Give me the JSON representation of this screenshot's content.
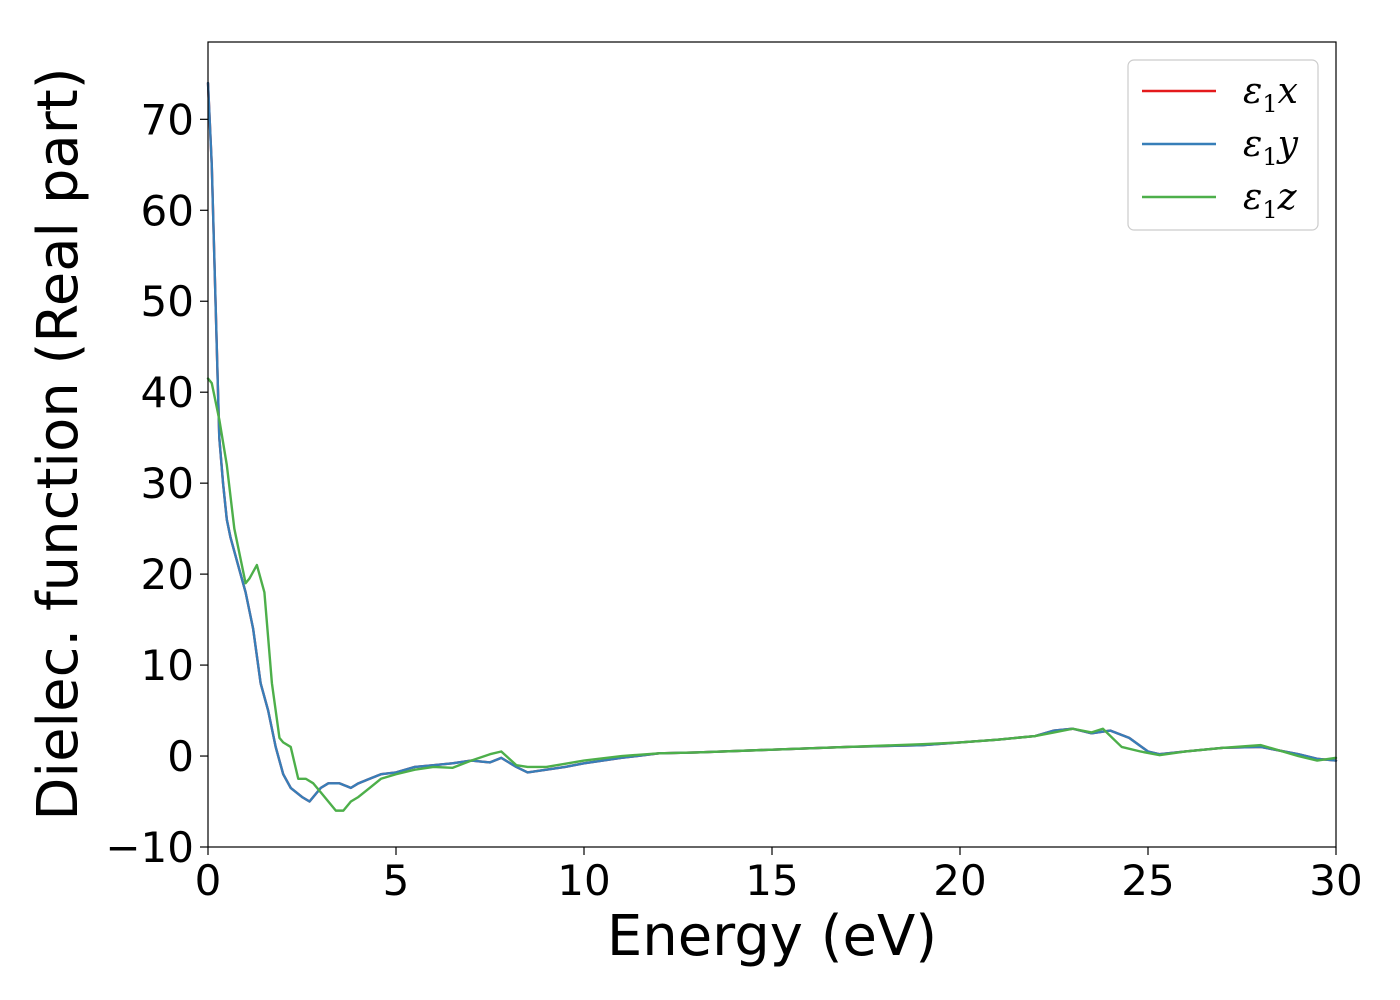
{
  "chart_data": {
    "type": "line",
    "xlabel": "Energy (eV)",
    "ylabel": "Dielec. function (Real part)",
    "xlim": [
      0,
      30
    ],
    "ylim": [
      -10,
      78.5
    ],
    "xticks": [
      0,
      5,
      10,
      15,
      20,
      25,
      30
    ],
    "yticks": [
      -10,
      0,
      10,
      20,
      30,
      40,
      50,
      60,
      70
    ],
    "xtick_labels": [
      "0",
      "5",
      "10",
      "15",
      "20",
      "25",
      "30"
    ],
    "ytick_labels": [
      "−10",
      "0",
      "10",
      "20",
      "30",
      "40",
      "50",
      "60",
      "70"
    ],
    "grid": false,
    "legend_position": "top-right",
    "legend": [
      {
        "sym": "ε",
        "sub": "1",
        "var": "x",
        "color": "#e41a1c"
      },
      {
        "sym": "ε",
        "sub": "1",
        "var": "y",
        "color": "#377eb8"
      },
      {
        "sym": "ε",
        "sub": "1",
        "var": "z",
        "color": "#4daf4a"
      }
    ],
    "series": [
      {
        "name": "ε1x",
        "color": "#e41a1c",
        "x": [
          0,
          0.1,
          0.2,
          0.3,
          0.4,
          0.5,
          0.6,
          0.8,
          1.0,
          1.2,
          1.4,
          1.6,
          1.8,
          2.0,
          2.2,
          2.5,
          2.7,
          3.0,
          3.2,
          3.5,
          3.8,
          4.0,
          4.3,
          4.6,
          5.0,
          5.5,
          6.0,
          6.5,
          7.0,
          7.5,
          7.8,
          8.2,
          8.5,
          9.0,
          9.5,
          10.0,
          11.0,
          12.0,
          13.0,
          15.0,
          17.0,
          19.0,
          20.0,
          21.0,
          22.0,
          22.5,
          23.0,
          23.5,
          24.0,
          24.5,
          25.0,
          25.3,
          26.0,
          27.0,
          28.0,
          29.0,
          29.5,
          30.0
        ],
        "y": [
          74,
          65,
          50,
          35,
          30,
          26,
          24,
          21,
          18,
          14,
          8,
          5,
          1,
          -2,
          -3.5,
          -4.5,
          -5,
          -3.5,
          -3,
          -3,
          -3.5,
          -3,
          -2.5,
          -2,
          -1.8,
          -1.2,
          -1.0,
          -0.8,
          -0.5,
          -0.7,
          -0.2,
          -1.2,
          -1.8,
          -1.5,
          -1.2,
          -0.8,
          -0.2,
          0.3,
          0.4,
          0.7,
          1.0,
          1.2,
          1.5,
          1.8,
          2.2,
          2.8,
          3.0,
          2.5,
          2.8,
          2.0,
          0.5,
          0.2,
          0.5,
          0.9,
          1.0,
          0.2,
          -0.3,
          -0.5
        ]
      },
      {
        "name": "ε1y",
        "color": "#377eb8",
        "x": [
          0,
          0.1,
          0.2,
          0.3,
          0.4,
          0.5,
          0.6,
          0.8,
          1.0,
          1.2,
          1.4,
          1.6,
          1.8,
          2.0,
          2.2,
          2.5,
          2.7,
          3.0,
          3.2,
          3.5,
          3.8,
          4.0,
          4.3,
          4.6,
          5.0,
          5.5,
          6.0,
          6.5,
          7.0,
          7.5,
          7.8,
          8.2,
          8.5,
          9.0,
          9.5,
          10.0,
          11.0,
          12.0,
          13.0,
          15.0,
          17.0,
          19.0,
          20.0,
          21.0,
          22.0,
          22.5,
          23.0,
          23.5,
          24.0,
          24.5,
          25.0,
          25.3,
          26.0,
          27.0,
          28.0,
          29.0,
          29.5,
          30.0
        ],
        "y": [
          74,
          65,
          50,
          35,
          30,
          26,
          24,
          21,
          18,
          14,
          8,
          5,
          1,
          -2,
          -3.5,
          -4.5,
          -5,
          -3.5,
          -3,
          -3,
          -3.5,
          -3,
          -2.5,
          -2,
          -1.8,
          -1.2,
          -1.0,
          -0.8,
          -0.5,
          -0.7,
          -0.2,
          -1.2,
          -1.8,
          -1.5,
          -1.2,
          -0.8,
          -0.2,
          0.3,
          0.4,
          0.7,
          1.0,
          1.2,
          1.5,
          1.8,
          2.2,
          2.8,
          3.0,
          2.5,
          2.8,
          2.0,
          0.5,
          0.2,
          0.5,
          0.9,
          1.0,
          0.2,
          -0.3,
          -0.5
        ]
      },
      {
        "name": "ε1z",
        "color": "#4daf4a",
        "x": [
          0,
          0.1,
          0.2,
          0.3,
          0.5,
          0.7,
          0.9,
          1.0,
          1.1,
          1.3,
          1.5,
          1.7,
          1.9,
          2.0,
          2.2,
          2.4,
          2.6,
          2.8,
          3.0,
          3.2,
          3.4,
          3.6,
          3.8,
          4.0,
          4.3,
          4.6,
          5.0,
          5.5,
          6.0,
          6.5,
          7.0,
          7.5,
          7.8,
          8.2,
          8.5,
          9.0,
          10.0,
          11.0,
          12.0,
          13.0,
          15.0,
          17.0,
          19.0,
          20.0,
          21.0,
          22.0,
          22.5,
          23.0,
          23.5,
          23.8,
          24.3,
          24.8,
          25.3,
          26.0,
          27.0,
          28.0,
          29.0,
          29.5,
          30.0
        ],
        "y": [
          41.5,
          41,
          39,
          37,
          32,
          25,
          21,
          19,
          19.5,
          21,
          18,
          8,
          2,
          1.5,
          1.0,
          -2.5,
          -2.5,
          -3,
          -4,
          -5,
          -6,
          -6,
          -5,
          -4.5,
          -3.5,
          -2.5,
          -2,
          -1.5,
          -1.2,
          -1.3,
          -0.5,
          0.2,
          0.5,
          -1,
          -1.2,
          -1.2,
          -0.5,
          0,
          0.3,
          0.4,
          0.7,
          1.0,
          1.3,
          1.5,
          1.8,
          2.2,
          2.6,
          3.0,
          2.6,
          3.0,
          1.0,
          0.5,
          0.1,
          0.5,
          0.9,
          1.2,
          0,
          -0.5,
          -0.2
        ]
      }
    ]
  }
}
